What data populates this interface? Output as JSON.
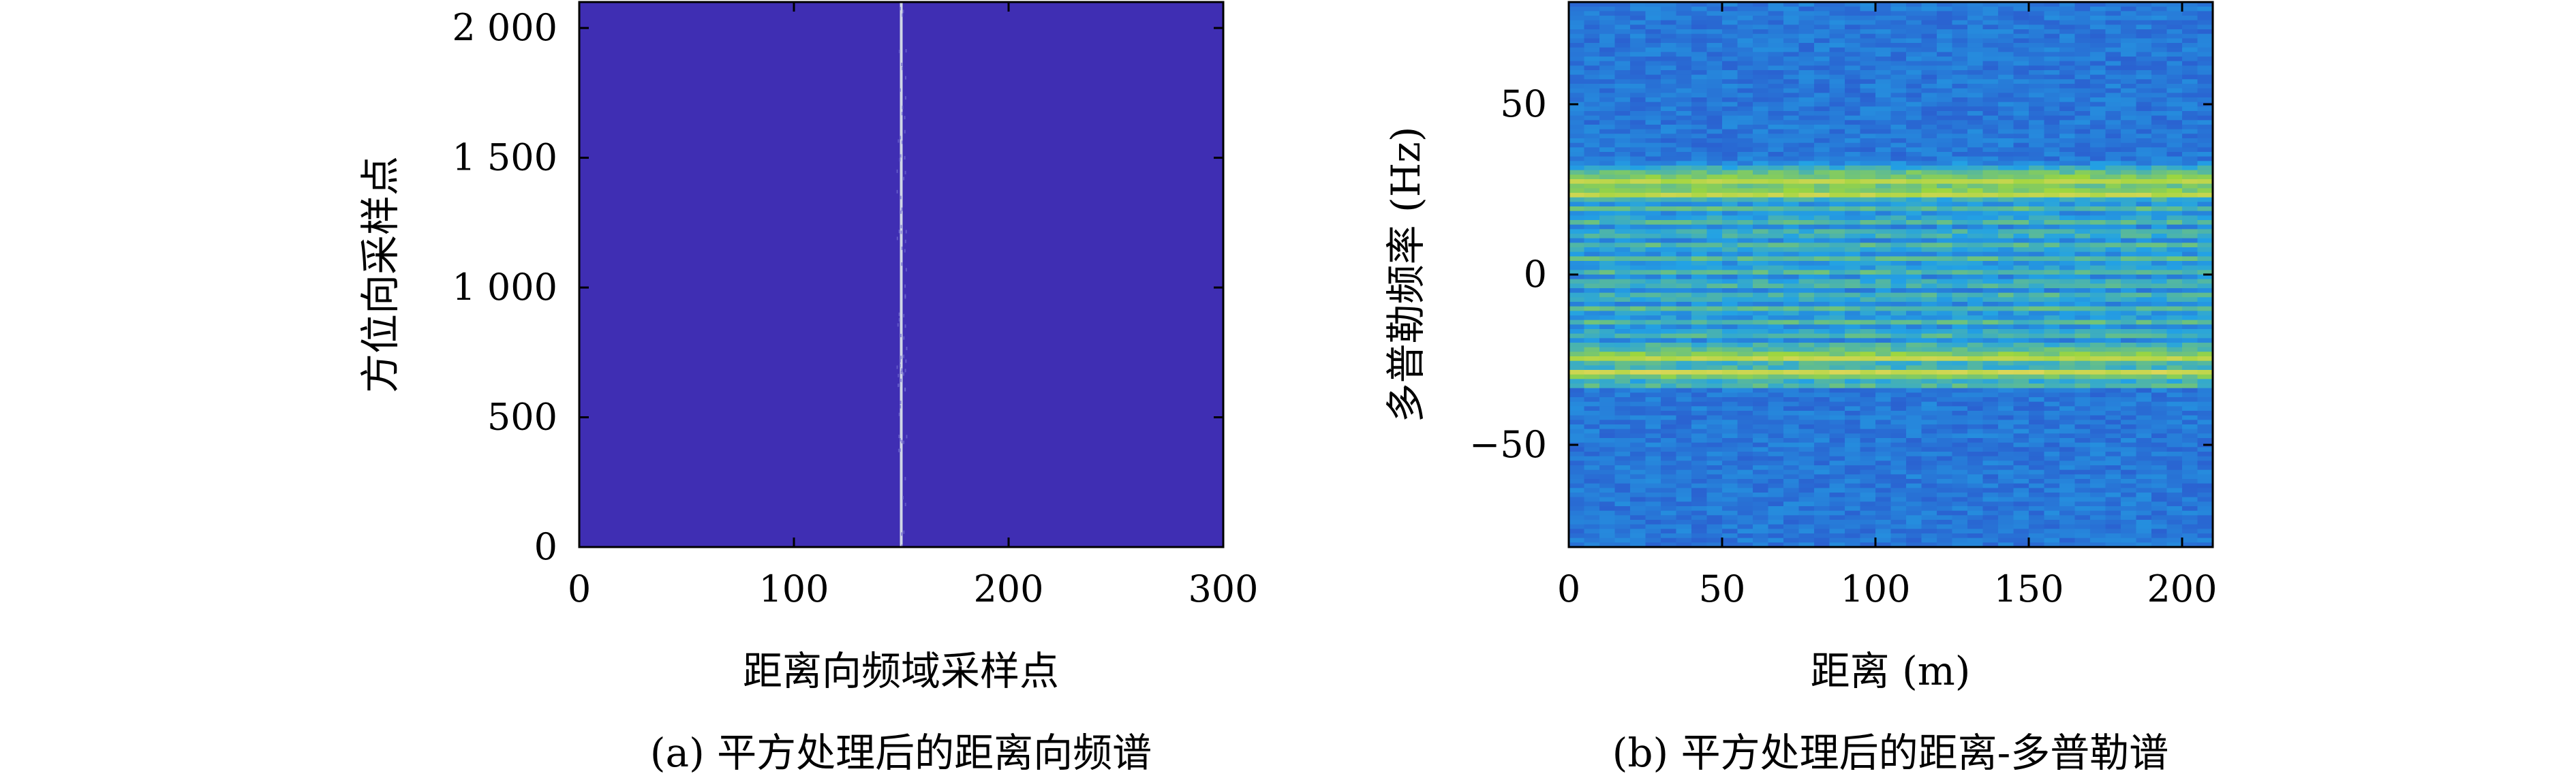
{
  "colors": {
    "background": "#3f2eb3",
    "line": "#cfd6e6",
    "axis": "#000000",
    "heat_low": "#2d46c8",
    "heat_mid": "#23a2e4",
    "heat_band": "#9bd63f",
    "heat_peak": "#e6d65a"
  },
  "chart_data": [
    {
      "type": "heatmap",
      "caption": "(a) 平方处理后的距离向频谱",
      "xlabel": "距离向频域采样点",
      "ylabel": "方位向采样点",
      "xlim": [
        0,
        300
      ],
      "ylim": [
        0,
        2100
      ],
      "xticks": [
        0,
        100,
        200,
        300
      ],
      "xtick_labels": [
        "0",
        "100",
        "200",
        "300"
      ],
      "yticks": [
        0,
        500,
        1000,
        1500,
        2000
      ],
      "ytick_labels": [
        "0",
        "500",
        "1 000",
        "1 500",
        "2 000"
      ],
      "peak_column": 150,
      "grid": false
    },
    {
      "type": "heatmap",
      "caption": "(b) 平方处理后的距离-多普勒谱",
      "xlabel": "距离 (m)",
      "ylabel": "多普勒频率 (Hz)",
      "xlim": [
        0,
        210
      ],
      "ylim": [
        -80,
        80
      ],
      "xticks": [
        0,
        50,
        100,
        150,
        200
      ],
      "xtick_labels": [
        "0",
        "50",
        "100",
        "150",
        "200"
      ],
      "yticks": [
        -50,
        0,
        50
      ],
      "ytick_labels": [
        "−50",
        "0",
        "50"
      ],
      "strong_bands_hz": [
        28,
        24,
        -24,
        -29
      ],
      "grid": false
    }
  ]
}
